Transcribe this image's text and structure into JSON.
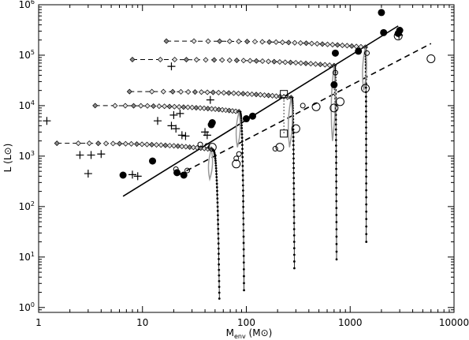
{
  "chart_data": {
    "type": "scatter",
    "title": "",
    "xlabel": {
      "main": "M",
      "sub": "env",
      "unit_open": " (M",
      "unit_sym": "⊙",
      "unit_close": ")"
    },
    "ylabel": {
      "main": "L (L",
      "unit_sym": "⊙",
      "unit_close": ")"
    },
    "xscale": "log",
    "yscale": "log",
    "xlim": [
      1,
      10000
    ],
    "ylim": [
      0.8,
      1000000
    ],
    "x_ticks": [
      {
        "value": 1,
        "label": "1"
      },
      {
        "value": 10,
        "label": "10"
      },
      {
        "value": 100,
        "label": "100"
      },
      {
        "value": 1000,
        "label": "1000"
      },
      {
        "value": 10000,
        "label": "10000"
      }
    ],
    "y_ticks": [
      {
        "value": 1,
        "base": "10",
        "exp": "0"
      },
      {
        "value": 10,
        "base": "10",
        "exp": "1"
      },
      {
        "value": 100,
        "base": "10",
        "exp": "2"
      },
      {
        "value": 1000,
        "base": "10",
        "exp": "3"
      },
      {
        "value": 10000,
        "base": "10",
        "exp": "4"
      },
      {
        "value": 100000,
        "base": "10",
        "exp": "5"
      },
      {
        "value": 1000000,
        "base": "10",
        "exp": "6"
      }
    ],
    "grid": false,
    "legend": "none",
    "fit_lines": [
      {
        "style": "solid",
        "points": [
          [
            6.5,
            160
          ],
          [
            2900,
            380000
          ]
        ]
      },
      {
        "style": "dashed",
        "points": [
          [
            22,
            420
          ],
          [
            6000,
            170000
          ]
        ]
      }
    ],
    "tracks": [
      {
        "L_plateau": 1800,
        "x_start": 1.5,
        "x_turn": 46,
        "turn_dip": 350,
        "x_end": 55,
        "L_end": 1.5
      },
      {
        "L_plateau": 10000,
        "x_start": 3.5,
        "x_turn": 85,
        "turn_dip": 1500,
        "x_end": 95,
        "L_end": 2.2
      },
      {
        "L_plateau": 19000,
        "x_start": 7.5,
        "x_turn": 270,
        "turn_dip": 1500,
        "x_end": 290,
        "L_end": 6
      },
      {
        "L_plateau": 82000,
        "x_start": 8,
        "x_turn": 700,
        "turn_dip": 2000,
        "x_end": 740,
        "L_end": 9
      },
      {
        "L_plateau": 190000,
        "x_start": 17,
        "x_turn": 1400,
        "turn_dip": 20000,
        "x_end": 1430,
        "L_end": 20
      }
    ],
    "filled_circles": [
      [
        6.5,
        420
      ],
      [
        12.5,
        800
      ],
      [
        21.5,
        470
      ],
      [
        25,
        420
      ],
      [
        46,
        4200
      ],
      [
        47,
        4600
      ],
      [
        100,
        5500
      ],
      [
        115,
        6200
      ],
      [
        700,
        26000
      ],
      [
        720,
        110000
      ],
      [
        1200,
        120000
      ],
      [
        2000,
        700000
      ],
      [
        2100,
        280000
      ],
      [
        2900,
        270000
      ],
      [
        3000,
        310000
      ]
    ],
    "open_circles_large": [
      [
        47,
        1500
      ],
      [
        80,
        700
      ],
      [
        210,
        1500
      ],
      [
        300,
        3500
      ],
      [
        470,
        9500
      ],
      [
        700,
        9000
      ],
      [
        800,
        12000
      ],
      [
        1400,
        22000
      ],
      [
        2900,
        240000
      ],
      [
        6000,
        85000
      ]
    ],
    "open_circles_small": [
      [
        21,
        550
      ],
      [
        25,
        430
      ],
      [
        27,
        520
      ],
      [
        36,
        1700
      ],
      [
        42,
        1600
      ],
      [
        80,
        900
      ],
      [
        85,
        1100
      ],
      [
        190,
        1400
      ],
      [
        350,
        10000
      ],
      [
        720,
        45000
      ],
      [
        1450,
        110000
      ]
    ],
    "plus_markers": [
      [
        1.2,
        5000
      ],
      [
        2.5,
        1050
      ],
      [
        3,
        450
      ],
      [
        3.2,
        1050
      ],
      [
        4,
        1100
      ],
      [
        8,
        430
      ],
      [
        9,
        400
      ],
      [
        14,
        5000
      ],
      [
        19,
        4000
      ],
      [
        19,
        60000
      ],
      [
        20,
        6500
      ],
      [
        21,
        3500
      ],
      [
        23,
        7000
      ],
      [
        24,
        2600
      ],
      [
        26,
        2500
      ],
      [
        40,
        3000
      ],
      [
        42,
        2600
      ],
      [
        45,
        13000
      ],
      [
        2950,
        250000
      ]
    ],
    "open_squares": [
      [
        230,
        17000
      ],
      [
        230,
        2800
      ]
    ],
    "dotted_links": [
      {
        "points": [
          [
            230,
            17000
          ],
          [
            230,
            2800
          ]
        ]
      },
      {
        "points": [
          [
            700,
            25000
          ],
          [
            720,
            8500
          ]
        ]
      }
    ]
  }
}
